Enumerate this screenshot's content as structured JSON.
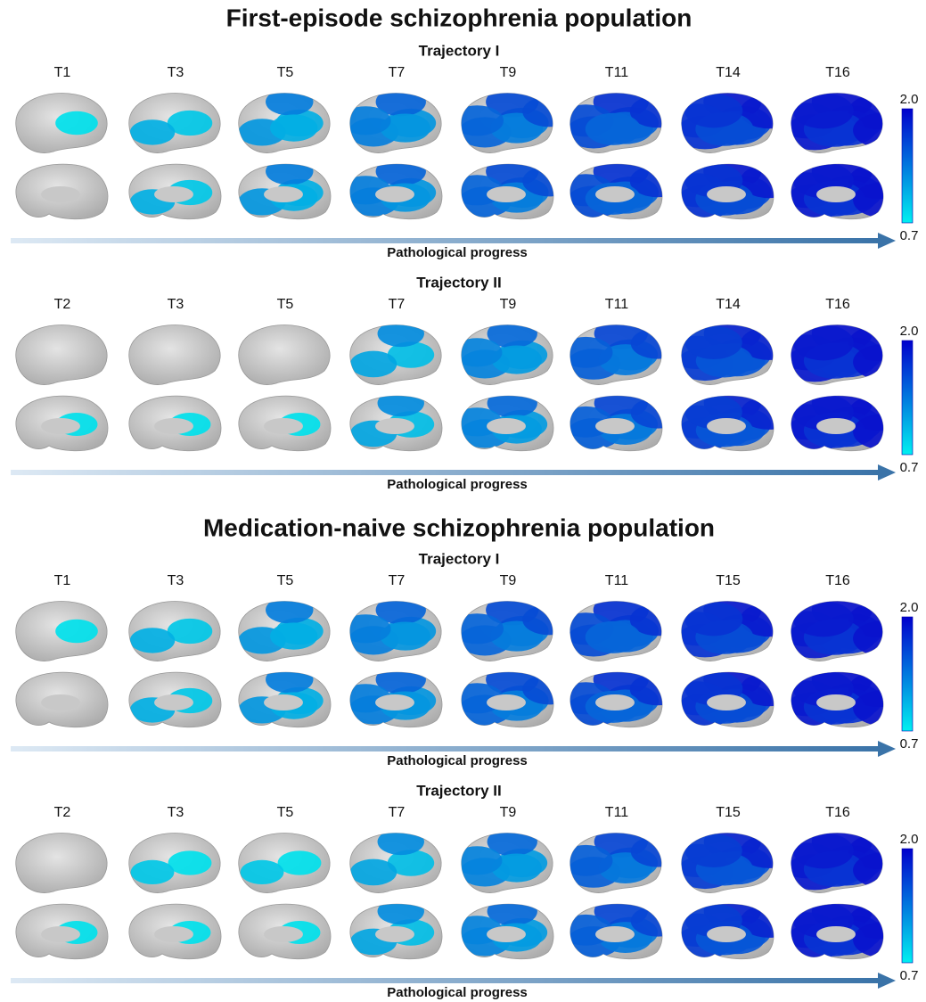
{
  "sections": [
    {
      "title": "First-episode schizophrenia population",
      "trajectories": [
        {
          "title": "Trajectory I",
          "stages": [
            "T1",
            "T3",
            "T5",
            "T7",
            "T9",
            "T11",
            "T14",
            "T16"
          ],
          "scale_max": "2.0",
          "scale_min": "0.7",
          "progress_label": "Pathological progress"
        },
        {
          "title": "Trajectory II",
          "stages": [
            "T2",
            "T3",
            "T5",
            "T7",
            "T9",
            "T11",
            "T14",
            "T16"
          ],
          "scale_max": "2.0",
          "scale_min": "0.7",
          "progress_label": "Pathological progress"
        }
      ]
    },
    {
      "title": "Medication-naive schizophrenia population",
      "trajectories": [
        {
          "title": "Trajectory I",
          "stages": [
            "T1",
            "T3",
            "T5",
            "T7",
            "T9",
            "T11",
            "T15",
            "T16"
          ],
          "scale_max": "2.0",
          "scale_min": "0.7",
          "progress_label": "Pathological progress"
        },
        {
          "title": "Trajectory II",
          "stages": [
            "T2",
            "T3",
            "T5",
            "T7",
            "T9",
            "T11",
            "T15",
            "T16"
          ],
          "scale_max": "2.0",
          "scale_min": "0.7",
          "progress_label": "Pathological progress"
        }
      ]
    }
  ]
}
